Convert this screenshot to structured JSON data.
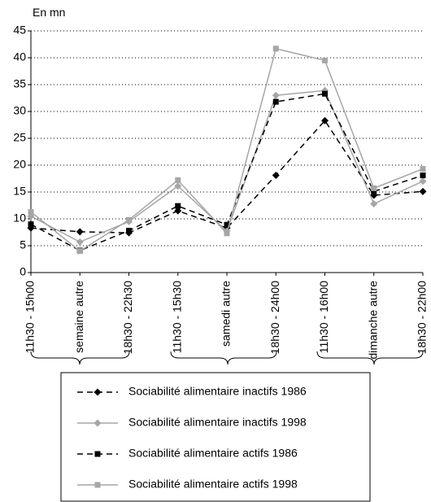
{
  "chart_data": {
    "type": "line",
    "y_label": "En mn",
    "categories": [
      "11h30 - 15h00",
      "semaine autre",
      "18h30 - 22h30",
      "11h30 - 15h30",
      "samedi autre",
      "18h30 - 24h00",
      "11h30 - 16h00",
      "dimanche autre",
      "18h30 - 22h00"
    ],
    "series": [
      {
        "name": "Sociabilité alimentaire inactifs 1986",
        "color": "#000000",
        "dashed": true,
        "marker": "diamond",
        "values": [
          8.3,
          7.6,
          7.4,
          11.5,
          8.3,
          18.1,
          28.3,
          14.4,
          15.1
        ]
      },
      {
        "name": "Sociabilité alimentaire inactifs 1998",
        "color": "#a6a6a6",
        "dashed": false,
        "marker": "diamond",
        "values": [
          10.5,
          5.7,
          9.5,
          16.1,
          7.7,
          33.0,
          33.9,
          12.8,
          17.0
        ]
      },
      {
        "name": "Sociabilité alimentaire actifs 1986",
        "color": "#000000",
        "dashed": true,
        "marker": "square",
        "values": [
          9.0,
          4.1,
          7.8,
          12.4,
          8.9,
          31.8,
          33.3,
          15.1,
          18.1
        ]
      },
      {
        "name": "Sociabilité alimentaire actifs 1998",
        "color": "#a6a6a6",
        "dashed": false,
        "marker": "square",
        "values": [
          11.3,
          4.0,
          9.8,
          17.2,
          7.3,
          41.7,
          39.5,
          15.7,
          19.3
        ]
      }
    ],
    "ylim": [
      0,
      45
    ],
    "yticks": [
      0,
      5,
      10,
      15,
      20,
      25,
      30,
      35,
      40,
      45
    ],
    "grid": true
  }
}
